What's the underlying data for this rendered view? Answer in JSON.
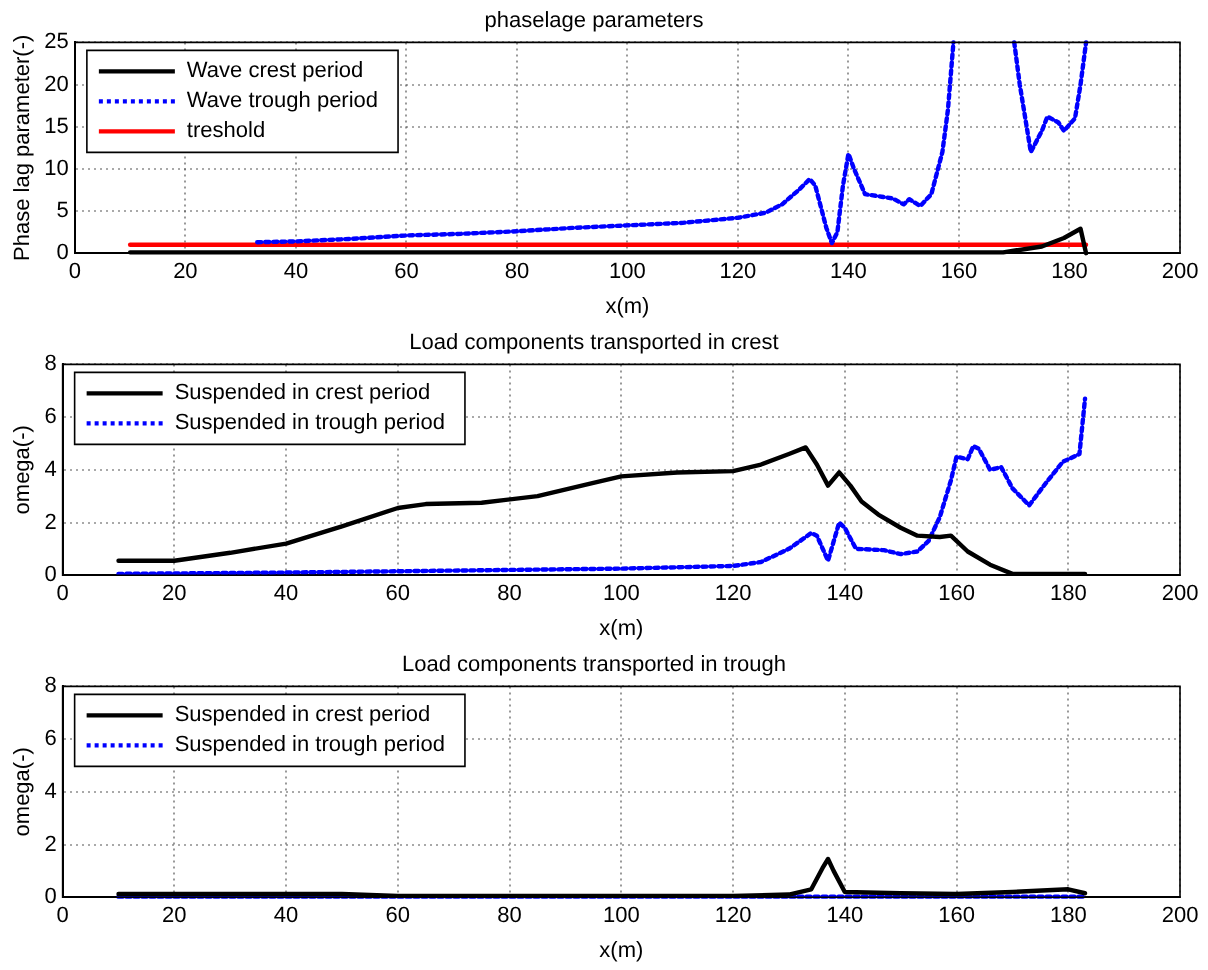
{
  "chart_data": [
    {
      "type": "line",
      "title": "phaselage parameters",
      "xlabel": "x(m)",
      "ylabel": "Phase lag parameter(-)",
      "xlim": [
        0,
        200
      ],
      "xticks": [
        0,
        20,
        40,
        60,
        80,
        100,
        120,
        140,
        160,
        180,
        200
      ],
      "ylim": [
        0,
        25
      ],
      "yticks": [
        0,
        5,
        10,
        15,
        20,
        25
      ],
      "grid": true,
      "legend": "top left",
      "marker": "none",
      "series": [
        {
          "name": "Wave crest period",
          "color": "#000000",
          "line_style": "solid",
          "x": [
            10,
            100,
            150,
            168,
            175,
            179,
            182,
            183
          ],
          "values": [
            0.1,
            0.1,
            0.1,
            0.1,
            0.8,
            1.8,
            2.9,
            0
          ]
        },
        {
          "name": "Wave trough period",
          "color": "#0000ff",
          "line_style": "dotted",
          "x": [
            33,
            40,
            50,
            60,
            70,
            80,
            90,
            100,
            110,
            120,
            125,
            128,
            131,
            133,
            134,
            136,
            137,
            138,
            139,
            140,
            141,
            143,
            146,
            148,
            150,
            151,
            153,
            155,
            157,
            158,
            159,
            160,
            170,
            171,
            173,
            175,
            176,
            178,
            179,
            181,
            182,
            183
          ],
          "values": [
            1.3,
            1.4,
            1.7,
            2.1,
            2.3,
            2.6,
            3.0,
            3.3,
            3.6,
            4.2,
            4.8,
            5.8,
            7.5,
            8.8,
            8.0,
            3,
            1.2,
            2.5,
            8,
            11.8,
            10,
            7,
            6.7,
            6.5,
            5.8,
            6.4,
            5.6,
            7,
            12,
            17,
            25,
            null,
            25,
            20,
            12,
            14.5,
            16.2,
            15.5,
            14.5,
            16,
            20,
            25
          ]
        },
        {
          "name": "treshold",
          "color": "#ff0000",
          "line_style": "solid",
          "x": [
            10,
            183
          ],
          "values": [
            1,
            1
          ]
        }
      ]
    },
    {
      "type": "line",
      "title": "Load components transported in crest",
      "xlabel": "x(m)",
      "ylabel": "omega(-)",
      "xlim": [
        0,
        200
      ],
      "xticks": [
        0,
        20,
        40,
        60,
        80,
        100,
        120,
        140,
        160,
        180,
        200
      ],
      "ylim": [
        0,
        8
      ],
      "yticks": [
        0,
        2,
        4,
        6,
        8
      ],
      "grid": true,
      "legend": "top left",
      "marker": "none",
      "series": [
        {
          "name": "Suspended in crest period",
          "color": "#000000",
          "line_style": "solid",
          "x": [
            10,
            20,
            30,
            40,
            50,
            60,
            65,
            75,
            85,
            95,
            100,
            110,
            120,
            125,
            130,
            133,
            135,
            137,
            139,
            141,
            143,
            146,
            150,
            153,
            157,
            159,
            162,
            166,
            170,
            183
          ],
          "values": [
            0.55,
            0.55,
            0.85,
            1.2,
            1.85,
            2.55,
            2.7,
            2.75,
            3.0,
            3.5,
            3.75,
            3.9,
            3.95,
            4.2,
            4.6,
            4.85,
            4.2,
            3.4,
            3.9,
            3.4,
            2.8,
            2.3,
            1.8,
            1.5,
            1.45,
            1.5,
            0.9,
            0.4,
            0.05,
            0.05
          ]
        },
        {
          "name": "Suspended in trough period",
          "color": "#0000ff",
          "line_style": "dotted",
          "x": [
            10,
            40,
            60,
            80,
            100,
            120,
            125,
            130,
            134,
            135,
            137,
            139,
            140,
            142,
            147,
            150,
            153,
            155,
            157,
            159,
            160,
            162,
            163,
            164,
            166,
            168,
            170,
            173,
            176,
            179,
            182,
            183
          ],
          "values": [
            0.05,
            0.1,
            0.15,
            0.2,
            0.25,
            0.35,
            0.5,
            1.0,
            1.6,
            1.5,
            0.55,
            2.0,
            1.8,
            1.0,
            0.95,
            0.8,
            0.9,
            1.3,
            2.2,
            3.6,
            4.5,
            4.4,
            4.9,
            4.8,
            4.0,
            4.1,
            3.3,
            2.65,
            3.5,
            4.3,
            4.6,
            6.7
          ]
        }
      ]
    },
    {
      "type": "line",
      "title": "Load components transported in trough",
      "xlabel": "x(m)",
      "ylabel": "omega(-)",
      "xlim": [
        0,
        200
      ],
      "xticks": [
        0,
        20,
        40,
        60,
        80,
        100,
        120,
        140,
        160,
        180,
        200
      ],
      "ylim": [
        0,
        8
      ],
      "yticks": [
        0,
        2,
        4,
        6,
        8
      ],
      "grid": true,
      "legend": "top left",
      "marker": "none",
      "series": [
        {
          "name": "Suspended in crest period",
          "color": "#000000",
          "line_style": "solid",
          "x": [
            10,
            50,
            60,
            120,
            130,
            134,
            136,
            137,
            138,
            140,
            150,
            160,
            170,
            180,
            183
          ],
          "values": [
            0.12,
            0.12,
            0.05,
            0.05,
            0.1,
            0.3,
            1.1,
            1.45,
            1.0,
            0.2,
            0.15,
            0.12,
            0.2,
            0.3,
            0.15
          ]
        },
        {
          "name": "Suspended in trough period",
          "color": "#0000ff",
          "line_style": "dotted",
          "x": [
            10,
            183
          ],
          "values": [
            0.02,
            0.02
          ]
        }
      ]
    }
  ]
}
